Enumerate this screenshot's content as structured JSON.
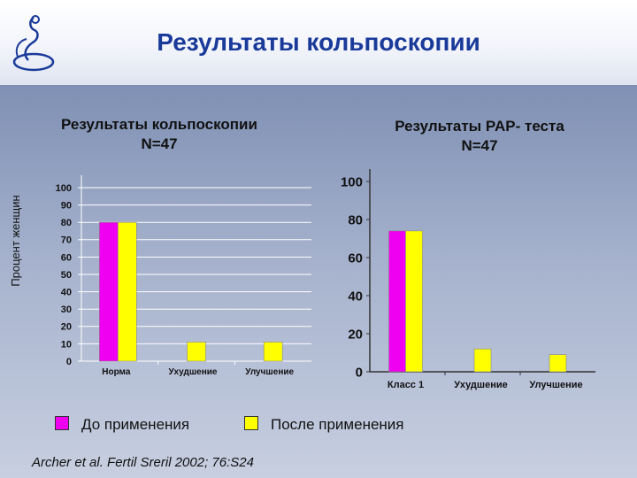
{
  "title": "Результаты кольпоскопии",
  "y_axis_label": "Процент женщин",
  "colors": {
    "before": "#f000f0",
    "after": "#ffff00"
  },
  "legend": {
    "before": "До применения",
    "after": "После применения"
  },
  "source": "Archer et al. Fertil Sreril 2002; 76:S24",
  "chart_data": [
    {
      "type": "bar",
      "title": "Результаты кольпоскопии",
      "subtitle": "N=47",
      "categories": [
        "Норма",
        "Ухудшение",
        "Улучшение"
      ],
      "series": [
        {
          "name": "До применения",
          "values": [
            80,
            null,
            null
          ]
        },
        {
          "name": "После применения",
          "values": [
            80,
            11,
            11
          ]
        }
      ],
      "yticks": [
        0,
        10,
        20,
        30,
        40,
        50,
        60,
        70,
        80,
        90,
        100
      ],
      "ylim": [
        0,
        100
      ],
      "ylabel": "Процент женщин",
      "grid": true
    },
    {
      "type": "bar",
      "title": "Результаты PAP- теста",
      "subtitle": "N=47",
      "categories": [
        "Класс 1",
        "Ухудшение",
        "Улучшение"
      ],
      "series": [
        {
          "name": "До применения",
          "values": [
            74,
            null,
            null
          ]
        },
        {
          "name": "После применения",
          "values": [
            74,
            12,
            9
          ]
        }
      ],
      "yticks": [
        0,
        20,
        40,
        60,
        80,
        100
      ],
      "ylim": [
        0,
        100
      ],
      "grid": false
    }
  ]
}
